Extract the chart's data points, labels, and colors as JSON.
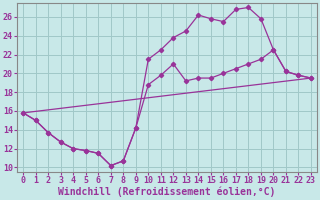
{
  "background_color": "#c8e8e8",
  "grid_color": "#a0c8c8",
  "line_color": "#993399",
  "marker_color": "#993399",
  "xlabel": "Windchill (Refroidissement éolien,°C)",
  "xlabel_fontsize": 7.0,
  "tick_fontsize": 6.0,
  "xlim": [
    -0.5,
    23.5
  ],
  "ylim": [
    9.5,
    27.5
  ],
  "yticks": [
    10,
    12,
    14,
    16,
    18,
    20,
    22,
    24,
    26
  ],
  "xticks": [
    0,
    1,
    2,
    3,
    4,
    5,
    6,
    7,
    8,
    9,
    10,
    11,
    12,
    13,
    14,
    15,
    16,
    17,
    18,
    19,
    20,
    21,
    22,
    23
  ],
  "line1_x": [
    0,
    1,
    2,
    3,
    4,
    5,
    6,
    7,
    8,
    9,
    10,
    11,
    12,
    13,
    14,
    15,
    16,
    17,
    18,
    19,
    20,
    21,
    22,
    23
  ],
  "line1_y": [
    15.8,
    15.0,
    13.7,
    12.7,
    12.0,
    11.8,
    11.5,
    10.2,
    10.7,
    14.2,
    21.5,
    22.5,
    23.8,
    24.5,
    26.2,
    25.8,
    25.5,
    26.8,
    27.0,
    25.8,
    22.5,
    20.2,
    19.8,
    19.5
  ],
  "line2_x": [
    0,
    1,
    2,
    3,
    4,
    5,
    6,
    7,
    8,
    9,
    10,
    11,
    12,
    13,
    14,
    15,
    16,
    17,
    18,
    19,
    20,
    21,
    22,
    23
  ],
  "line2_y": [
    15.8,
    15.0,
    13.7,
    12.7,
    12.0,
    11.8,
    11.5,
    10.2,
    10.7,
    14.2,
    18.8,
    19.8,
    21.0,
    19.2,
    19.5,
    19.5,
    20.0,
    20.5,
    21.0,
    21.5,
    22.5,
    20.2,
    19.8,
    19.5
  ],
  "line3_x": [
    0,
    23
  ],
  "line3_y": [
    15.8,
    19.5
  ]
}
